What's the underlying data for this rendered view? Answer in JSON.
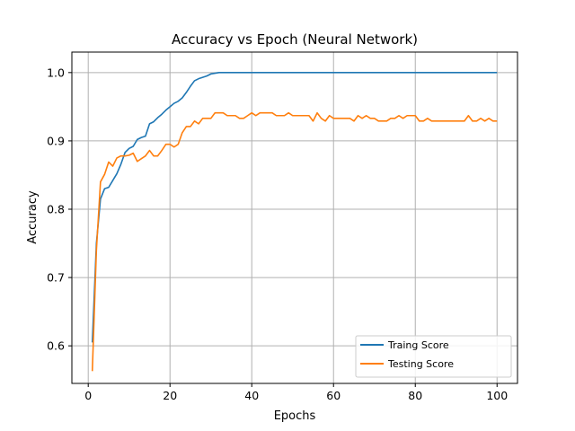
{
  "chart_data": {
    "type": "line",
    "title": "Accuracy vs Epoch (Neural Network)",
    "xlabel": "Epochs",
    "ylabel": "Accuracy",
    "xlim": [
      -4,
      105
    ],
    "ylim": [
      0.545,
      1.03
    ],
    "grid": true,
    "legend_position": "bottom-right",
    "x_ticks": [
      0,
      20,
      40,
      60,
      80,
      100
    ],
    "y_ticks": [
      0.6,
      0.7,
      0.8,
      0.9,
      1.0
    ],
    "x_tick_labels": [
      "0",
      "20",
      "40",
      "60",
      "80",
      "100"
    ],
    "y_tick_labels": [
      "0.6",
      "0.7",
      "0.8",
      "0.9",
      "1.0"
    ],
    "series": [
      {
        "name": "Traing Score",
        "color": "#1f77b4",
        "x": [
          1,
          2,
          3,
          4,
          5,
          6,
          7,
          8,
          9,
          10,
          11,
          12,
          13,
          14,
          15,
          16,
          17,
          18,
          19,
          20,
          21,
          22,
          23,
          24,
          25,
          26,
          27,
          28,
          29,
          30,
          31,
          32,
          33,
          34,
          35,
          36,
          37,
          38,
          39,
          40,
          41,
          42,
          43,
          44,
          45,
          46,
          47,
          48,
          49,
          50,
          51,
          52,
          53,
          54,
          55,
          56,
          57,
          58,
          59,
          60,
          61,
          62,
          63,
          64,
          65,
          66,
          67,
          68,
          69,
          70,
          71,
          72,
          73,
          74,
          75,
          76,
          77,
          78,
          79,
          80,
          81,
          82,
          83,
          84,
          85,
          86,
          87,
          88,
          89,
          90,
          91,
          92,
          93,
          94,
          95,
          96,
          97,
          98,
          99,
          100
        ],
        "values": [
          0.605,
          0.75,
          0.815,
          0.83,
          0.832,
          0.842,
          0.852,
          0.866,
          0.883,
          0.889,
          0.892,
          0.902,
          0.905,
          0.907,
          0.925,
          0.928,
          0.934,
          0.939,
          0.945,
          0.95,
          0.955,
          0.958,
          0.963,
          0.971,
          0.98,
          0.988,
          0.991,
          0.993,
          0.995,
          0.998,
          0.999,
          1.0,
          1.0,
          1.0,
          1.0,
          1.0,
          1.0,
          1.0,
          1.0,
          1.0,
          1.0,
          1.0,
          1.0,
          1.0,
          1.0,
          1.0,
          1.0,
          1.0,
          1.0,
          1.0,
          1.0,
          1.0,
          1.0,
          1.0,
          1.0,
          1.0,
          1.0,
          1.0,
          1.0,
          1.0,
          1.0,
          1.0,
          1.0,
          1.0,
          1.0,
          1.0,
          1.0,
          1.0,
          1.0,
          1.0,
          1.0,
          1.0,
          1.0,
          1.0,
          1.0,
          1.0,
          1.0,
          1.0,
          1.0,
          1.0,
          1.0,
          1.0,
          1.0,
          1.0,
          1.0,
          1.0,
          1.0,
          1.0,
          1.0,
          1.0,
          1.0,
          1.0,
          1.0,
          1.0,
          1.0,
          1.0,
          1.0,
          1.0,
          1.0,
          1.0
        ]
      },
      {
        "name": "Testing Score",
        "color": "#ff7f0e",
        "x": [
          1,
          2,
          3,
          4,
          5,
          6,
          7,
          8,
          9,
          10,
          11,
          12,
          13,
          14,
          15,
          16,
          17,
          18,
          19,
          20,
          21,
          22,
          23,
          24,
          25,
          26,
          27,
          28,
          29,
          30,
          31,
          32,
          33,
          34,
          35,
          36,
          37,
          38,
          39,
          40,
          41,
          42,
          43,
          44,
          45,
          46,
          47,
          48,
          49,
          50,
          51,
          52,
          53,
          54,
          55,
          56,
          57,
          58,
          59,
          60,
          61,
          62,
          63,
          64,
          65,
          66,
          67,
          68,
          69,
          70,
          71,
          72,
          73,
          74,
          75,
          76,
          77,
          78,
          79,
          80,
          81,
          82,
          83,
          84,
          85,
          86,
          87,
          88,
          89,
          90,
          91,
          92,
          93,
          94,
          95,
          96,
          97,
          98,
          99,
          100
        ],
        "values": [
          0.563,
          0.74,
          0.84,
          0.851,
          0.869,
          0.863,
          0.875,
          0.878,
          0.878,
          0.879,
          0.882,
          0.87,
          0.874,
          0.878,
          0.886,
          0.878,
          0.878,
          0.886,
          0.895,
          0.895,
          0.891,
          0.895,
          0.912,
          0.921,
          0.921,
          0.929,
          0.925,
          0.933,
          0.933,
          0.933,
          0.941,
          0.941,
          0.941,
          0.937,
          0.937,
          0.937,
          0.933,
          0.933,
          0.937,
          0.941,
          0.937,
          0.941,
          0.941,
          0.941,
          0.941,
          0.937,
          0.937,
          0.937,
          0.941,
          0.937,
          0.937,
          0.937,
          0.937,
          0.937,
          0.929,
          0.941,
          0.933,
          0.929,
          0.937,
          0.933,
          0.933,
          0.933,
          0.933,
          0.933,
          0.929,
          0.937,
          0.933,
          0.937,
          0.933,
          0.933,
          0.929,
          0.929,
          0.929,
          0.933,
          0.933,
          0.937,
          0.933,
          0.937,
          0.937,
          0.937,
          0.929,
          0.929,
          0.933,
          0.929,
          0.929,
          0.929,
          0.929,
          0.929,
          0.929,
          0.929,
          0.929,
          0.929,
          0.937,
          0.929,
          0.929,
          0.933,
          0.929,
          0.933,
          0.929,
          0.929
        ]
      }
    ]
  }
}
